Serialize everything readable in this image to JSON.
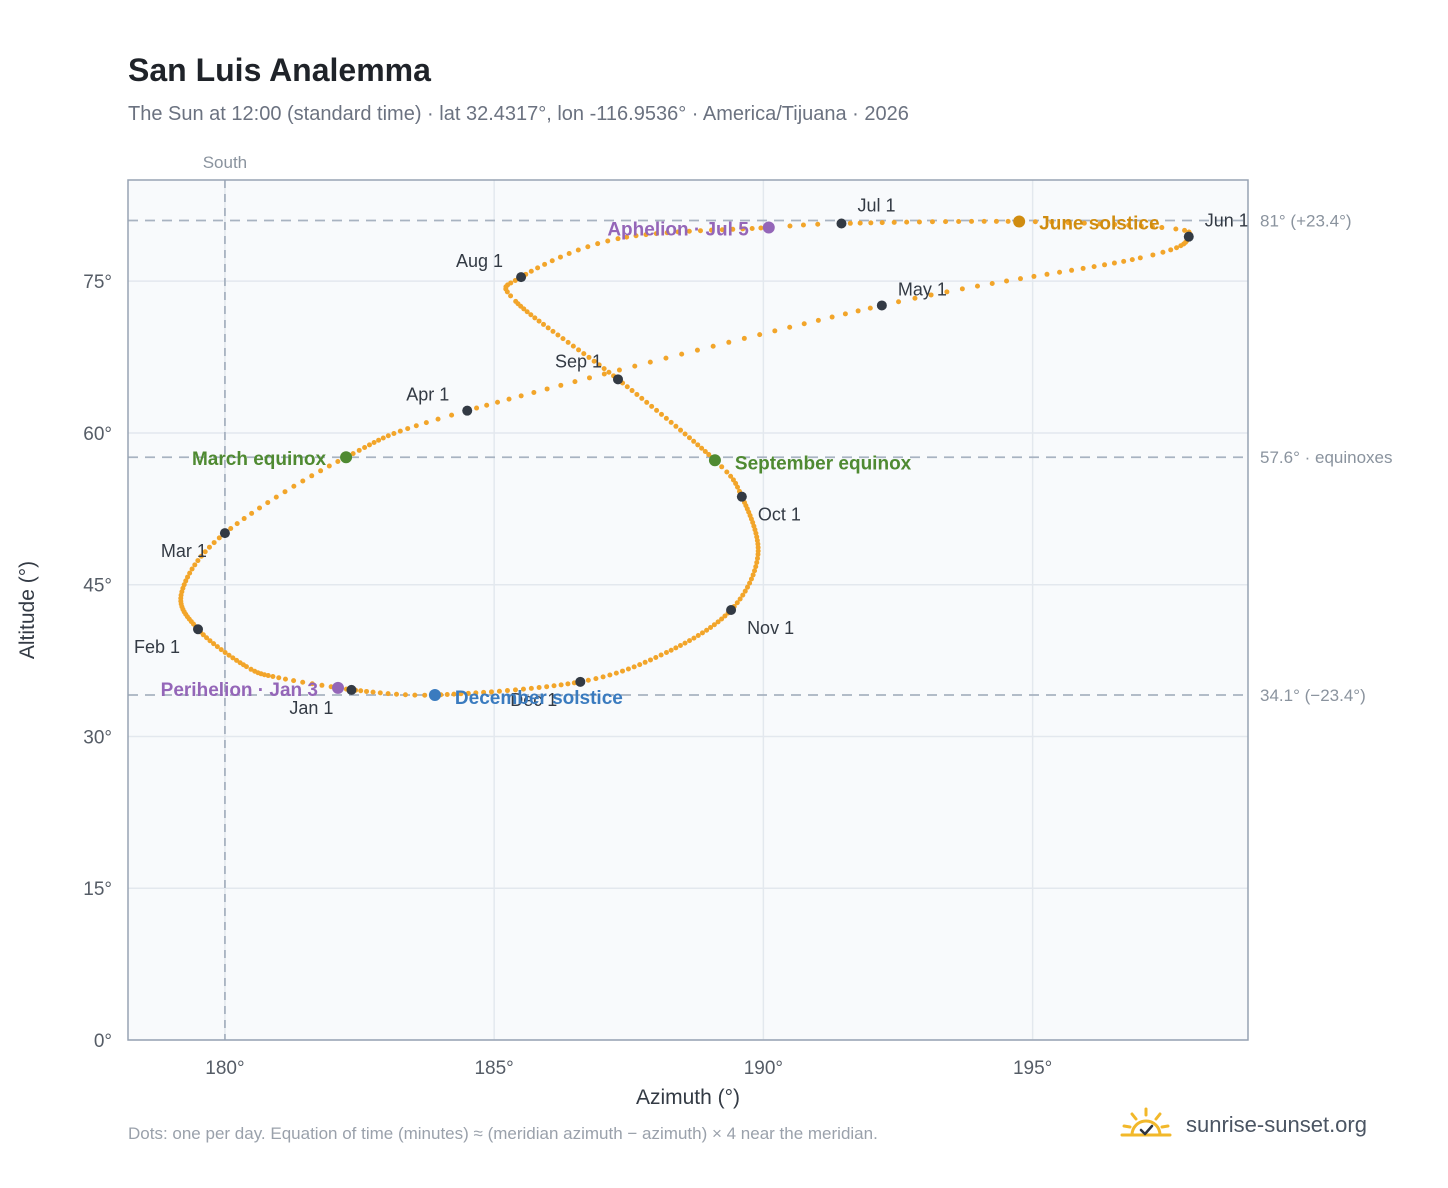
{
  "title": "San Luis Analemma",
  "subtitle": "The Sun at 12:00 (standard time) · lat 32.4317°, lon -116.9536° · America/Tijuana · 2026",
  "footnote": "Dots: one per day. Equation of time (minutes) ≈ (meridian azimuth − azimuth) × 4 near the meridian.",
  "brand": {
    "name": "sunrise-sunset.org",
    "icon": "sun-logo-icon"
  },
  "colors": {
    "path": "#f2a52a",
    "month_marker": "#333a44",
    "equinox": "#4f8a32",
    "solstice_june": "#d08c10",
    "solstice_december": "#3a7bbf",
    "apsis": "#9466b8",
    "reference_line": "#a8b3c1",
    "grid": "#e3e8ee",
    "plot_background": "#f8fafc",
    "axis": "#97a3b3"
  },
  "chart_data": {
    "type": "scatter",
    "xlabel": "Azimuth (°)",
    "ylabel": "Altitude (°)",
    "xlim": [
      178.2,
      199.0
    ],
    "ylim": [
      0,
      85
    ],
    "xticks": [
      {
        "value": 180,
        "label": "180°"
      },
      {
        "value": 185,
        "label": "185°"
      },
      {
        "value": 190,
        "label": "190°"
      },
      {
        "value": 195,
        "label": "195°"
      }
    ],
    "yticks": [
      {
        "value": 0,
        "label": "0°"
      },
      {
        "value": 15,
        "label": "15°"
      },
      {
        "value": 30,
        "label": "30°"
      },
      {
        "value": 45,
        "label": "45°"
      },
      {
        "value": 60,
        "label": "60°"
      },
      {
        "value": 75,
        "label": "75°"
      }
    ],
    "grid": true,
    "south_line": {
      "azimuth": 180,
      "label": "South"
    },
    "reference_lines": [
      {
        "altitude": 81.0,
        "label": "81° (+23.4°)"
      },
      {
        "altitude": 57.6,
        "label": "57.6° · equinoxes"
      },
      {
        "altitude": 34.1,
        "label": "34.1° (−23.4°)"
      }
    ],
    "month_markers": [
      {
        "label": "Jan 1",
        "azimuth": 182.35,
        "altitude": 34.6
      },
      {
        "label": "Feb 1",
        "azimuth": 179.5,
        "altitude": 40.6
      },
      {
        "label": "Mar 1",
        "azimuth": 180.0,
        "altitude": 50.1
      },
      {
        "label": "Apr 1",
        "azimuth": 184.5,
        "altitude": 62.2
      },
      {
        "label": "May 1",
        "azimuth": 192.2,
        "altitude": 72.6
      },
      {
        "label": "Jun 1",
        "azimuth": 197.9,
        "altitude": 79.4
      },
      {
        "label": "Jul 1",
        "azimuth": 191.45,
        "altitude": 80.7
      },
      {
        "label": "Aug 1",
        "azimuth": 185.5,
        "altitude": 75.4
      },
      {
        "label": "Sep 1",
        "azimuth": 187.3,
        "altitude": 65.3
      },
      {
        "label": "Oct 1",
        "azimuth": 189.6,
        "altitude": 53.7
      },
      {
        "label": "Nov 1",
        "azimuth": 189.4,
        "altitude": 42.5
      },
      {
        "label": "Dec 1",
        "azimuth": 186.6,
        "altitude": 35.4
      }
    ],
    "events": [
      {
        "label": "March equinox",
        "azimuth": 182.25,
        "altitude": 57.6,
        "color": "#4f8a32"
      },
      {
        "label": "September equinox",
        "azimuth": 189.1,
        "altitude": 57.3,
        "color": "#4f8a32"
      },
      {
        "label": "June solstice",
        "azimuth": 194.75,
        "altitude": 80.9,
        "color": "#d08c10"
      },
      {
        "label": "December solstice",
        "azimuth": 183.9,
        "altitude": 34.1,
        "color": "#3a7bbf"
      },
      {
        "label": "Perihelion · Jan 3",
        "azimuth": 182.1,
        "altitude": 34.8,
        "color": "#9466b8"
      },
      {
        "label": "Aphelion · Jul 5",
        "azimuth": 190.1,
        "altitude": 80.3,
        "color": "#9466b8"
      }
    ]
  }
}
